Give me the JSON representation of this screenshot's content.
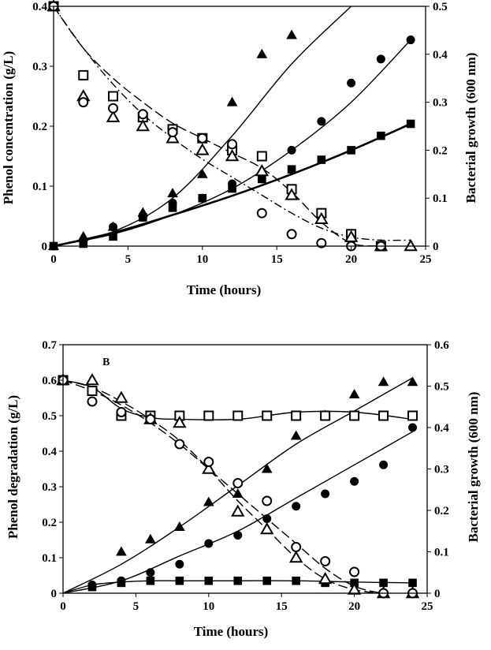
{
  "chart_data": [
    {
      "type": "scatter",
      "panel_label": "",
      "xlabel": "Time (hours)",
      "ylabel": "Phenol concentration (g/L)",
      "ylabel_right": "Bacterial growth (600 nm)",
      "xlim": [
        0,
        25
      ],
      "ylim": [
        0,
        0.4
      ],
      "ylim_right": [
        0,
        0.5
      ],
      "xticks": [
        "0",
        "5",
        "10",
        "15",
        "20",
        "25"
      ],
      "yticks": [
        "0",
        "0.1",
        "0.2",
        "0.3",
        "0.4"
      ],
      "yticks_right": [
        "0",
        "0.1",
        "0.2",
        "0.3",
        "0.4",
        "0.5"
      ],
      "grid": false,
      "legend": "none",
      "series": [
        {
          "marker": "filled-triangle",
          "axis": "right",
          "x": [
            0,
            2,
            4,
            6,
            8,
            10,
            12,
            14,
            16
          ],
          "y": [
            0,
            0.02,
            0.04,
            0.07,
            0.11,
            0.15,
            0.3,
            0.4,
            0.44
          ]
        },
        {
          "marker": "filled-circle",
          "axis": "right",
          "x": [
            0,
            2,
            4,
            6,
            8,
            10,
            12,
            14,
            16,
            18,
            20,
            22,
            24
          ],
          "y": [
            0,
            0.01,
            0.04,
            0.06,
            0.09,
            0.1,
            0.13,
            0.14,
            0.2,
            0.26,
            0.34,
            0.39,
            0.43
          ]
        },
        {
          "marker": "filled-square",
          "axis": "right",
          "x": [
            0,
            2,
            4,
            6,
            8,
            10,
            12,
            14,
            16,
            18,
            20,
            22,
            24
          ],
          "y": [
            0,
            0.005,
            0.02,
            0.06,
            0.08,
            0.1,
            0.12,
            0.14,
            0.16,
            0.18,
            0.2,
            0.23,
            0.255
          ]
        },
        {
          "marker": "open-square",
          "axis": "left",
          "x": [
            0,
            2,
            4,
            6,
            8,
            10,
            12,
            14,
            16,
            18,
            20,
            22
          ],
          "y": [
            0.4,
            0.285,
            0.25,
            0.215,
            0.195,
            0.18,
            0.16,
            0.15,
            0.095,
            0.055,
            0.02,
            0
          ]
        },
        {
          "marker": "open-triangle",
          "axis": "left",
          "x": [
            0,
            2,
            4,
            6,
            8,
            10,
            12,
            14,
            16,
            18,
            20,
            22,
            24
          ],
          "y": [
            0.4,
            0.25,
            0.215,
            0.2,
            0.18,
            0.16,
            0.15,
            0.125,
            0.085,
            0.045,
            0.015,
            0,
            0
          ]
        },
        {
          "marker": "open-circle",
          "axis": "left",
          "x": [
            0,
            2,
            4,
            6,
            8,
            10,
            12,
            14,
            16,
            18,
            20,
            22
          ],
          "y": [
            0.4,
            0.24,
            0.23,
            0.22,
            0.19,
            0.18,
            0.17,
            0.055,
            0.02,
            0.005,
            0,
            0
          ]
        }
      ],
      "fits": [
        {
          "style": "solid",
          "axis": "right",
          "x": [
            0,
            4,
            8,
            12,
            16,
            20
          ],
          "y": [
            0,
            0.03,
            0.1,
            0.23,
            0.38,
            0.5
          ]
        },
        {
          "style": "solid",
          "axis": "right",
          "x": [
            0,
            4,
            8,
            12,
            16,
            20,
            24
          ],
          "y": [
            0,
            0.025,
            0.065,
            0.12,
            0.2,
            0.3,
            0.43
          ]
        },
        {
          "style": "solid-thick",
          "axis": "right",
          "x": [
            0,
            4,
            8,
            12,
            16,
            20,
            24
          ],
          "y": [
            0,
            0.028,
            0.065,
            0.105,
            0.15,
            0.2,
            0.255
          ]
        },
        {
          "style": "long-dash",
          "axis": "left",
          "x": [
            0,
            2,
            4,
            6,
            8,
            10,
            12,
            14,
            16,
            18,
            20,
            22
          ],
          "y": [
            0.4,
            0.33,
            0.28,
            0.24,
            0.205,
            0.18,
            0.155,
            0.13,
            0.09,
            0.04,
            0.005,
            0
          ]
        },
        {
          "style": "dash-dot",
          "axis": "left",
          "x": [
            0,
            2,
            4,
            6,
            8,
            10,
            12,
            14,
            16,
            18,
            20,
            22,
            24
          ],
          "y": [
            0.4,
            0.33,
            0.27,
            0.22,
            0.18,
            0.145,
            0.115,
            0.085,
            0.055,
            0.03,
            0.015,
            0.01,
            0.01
          ]
        }
      ]
    },
    {
      "type": "scatter",
      "panel_label": "B",
      "xlabel": "Time (hours)",
      "ylabel": "Phenol degradation (g/L)",
      "ylabel_right": "Bacterial growth (600 nm)",
      "xlim": [
        0,
        25
      ],
      "ylim": [
        0,
        0.7
      ],
      "ylim_right": [
        0,
        0.6
      ],
      "xticks": [
        "0",
        "5",
        "10",
        "15",
        "20",
        "25"
      ],
      "yticks": [
        "0",
        "0.1",
        "0.2",
        "0.3",
        "0.4",
        "0.5",
        "0.6",
        "0.7"
      ],
      "yticks_right": [
        "0",
        "0.1",
        "0.2",
        "0.3",
        "0.4",
        "0.5",
        "0.6"
      ],
      "grid": false,
      "legend": "none",
      "series": [
        {
          "marker": "filled-triangle",
          "axis": "right",
          "x": [
            4,
            6,
            8,
            10,
            12,
            14,
            16,
            18,
            20,
            22,
            24
          ],
          "y": [
            0.1,
            0.13,
            0.16,
            0.22,
            0.24,
            0.3,
            0.38,
            0.43,
            0.48,
            0.51,
            0.51
          ]
        },
        {
          "marker": "filled-circle",
          "axis": "right",
          "x": [
            0,
            2,
            4,
            6,
            8,
            10,
            12,
            14,
            16,
            18,
            20,
            22,
            24
          ],
          "y": [
            0.515,
            0.02,
            0.03,
            0.05,
            0.07,
            0.12,
            0.14,
            0.18,
            0.21,
            0.24,
            0.27,
            0.31,
            0.4
          ]
        },
        {
          "marker": "filled-square",
          "axis": "right",
          "x": [
            2,
            4,
            6,
            8,
            10,
            12,
            14,
            16,
            18,
            20,
            22,
            24
          ],
          "y": [
            0.015,
            0.025,
            0.03,
            0.03,
            0.03,
            0.03,
            0.03,
            0.03,
            0.025,
            0.025,
            0.025,
            0.025
          ]
        },
        {
          "marker": "open-square",
          "axis": "left",
          "x": [
            0,
            2,
            4,
            6,
            8,
            10,
            12,
            14,
            16,
            18,
            20,
            22,
            24
          ],
          "y": [
            0.6,
            0.57,
            0.5,
            0.5,
            0.5,
            0.5,
            0.5,
            0.5,
            0.5,
            0.5,
            0.5,
            0.5,
            0.5
          ]
        },
        {
          "marker": "open-triangle",
          "axis": "left",
          "x": [
            0,
            2,
            4,
            6,
            8,
            10,
            12,
            14,
            16,
            18,
            20,
            22,
            24
          ],
          "y": [
            0.6,
            0.6,
            0.55,
            0.49,
            0.48,
            0.35,
            0.23,
            0.18,
            0.1,
            0.04,
            0.01,
            0,
            0
          ]
        },
        {
          "marker": "open-circle",
          "axis": "left",
          "x": [
            0,
            2,
            4,
            6,
            8,
            10,
            12,
            14,
            16,
            18,
            20,
            22,
            24
          ],
          "y": [
            0.6,
            0.54,
            0.51,
            0.49,
            0.42,
            0.37,
            0.31,
            0.26,
            0.13,
            0.09,
            0.06,
            0,
            0
          ]
        }
      ],
      "fits": [
        {
          "style": "solid",
          "axis": "right",
          "x": [
            0,
            4,
            8,
            12,
            16,
            20,
            24
          ],
          "y": [
            0,
            0.07,
            0.16,
            0.26,
            0.36,
            0.44,
            0.52
          ]
        },
        {
          "style": "solid",
          "axis": "right",
          "x": [
            0,
            4,
            8,
            12,
            16,
            20,
            24
          ],
          "y": [
            0,
            0.03,
            0.09,
            0.15,
            0.23,
            0.31,
            0.39
          ]
        },
        {
          "style": "solid",
          "axis": "right",
          "x": [
            0,
            2,
            4,
            6,
            8,
            12,
            16,
            20,
            24
          ],
          "y": [
            0,
            0.02,
            0.027,
            0.03,
            0.03,
            0.03,
            0.03,
            0.027,
            0.025
          ]
        },
        {
          "style": "solid",
          "axis": "left",
          "x": [
            0,
            2,
            4,
            6,
            8,
            12,
            16,
            20,
            24
          ],
          "y": [
            0.6,
            0.58,
            0.52,
            0.495,
            0.49,
            0.49,
            0.51,
            0.51,
            0.49
          ]
        },
        {
          "style": "long-dash",
          "axis": "left",
          "x": [
            0,
            2,
            4,
            6,
            8,
            10,
            12,
            14,
            16,
            18,
            20,
            22,
            24
          ],
          "y": [
            0.6,
            0.58,
            0.54,
            0.49,
            0.43,
            0.35,
            0.26,
            0.18,
            0.1,
            0.04,
            0.01,
            0,
            0
          ]
        },
        {
          "style": "long-dash",
          "axis": "left",
          "x": [
            0,
            2,
            4,
            6,
            8,
            10,
            12,
            14,
            16,
            18,
            20,
            22,
            24
          ],
          "y": [
            0.6,
            0.57,
            0.53,
            0.48,
            0.42,
            0.35,
            0.28,
            0.21,
            0.14,
            0.07,
            0.02,
            0,
            0
          ]
        }
      ]
    }
  ]
}
